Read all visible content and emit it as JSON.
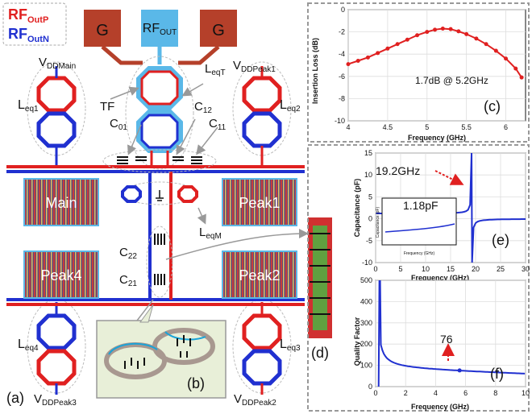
{
  "legend": {
    "rf_p": "RF",
    "rf_p_sub": "OutP",
    "rf_n": "RF",
    "rf_n_sub": "OutN"
  },
  "pads": {
    "g_left": "G",
    "rf_out": "RF",
    "rf_out_sub": "OUT",
    "g_right": "G"
  },
  "labels": {
    "vdd_main": "V",
    "vdd_main_sub": "DDMain",
    "vdd_peak1": "V",
    "vdd_peak1_sub": "DDPeak1",
    "vdd_peak3": "V",
    "vdd_peak3_sub": "DDPeak3",
    "vdd_peak2": "V",
    "vdd_peak2_sub": "DDPeak2",
    "leqt": "L",
    "leqt_sub": "eqT",
    "tf": "TF",
    "c12": "C",
    "c12_sub": "12",
    "c01": "C",
    "c01_sub": "01",
    "c11": "C",
    "c11_sub": "11",
    "leq1": "L",
    "leq1_sub": "eq1",
    "leq2": "L",
    "leq2_sub": "eq2",
    "leq3": "L",
    "leq3_sub": "eq3",
    "leq4": "L",
    "leq4_sub": "eq4",
    "leqm": "L",
    "leqm_sub": "eqM",
    "c22": "C",
    "c22_sub": "22",
    "c21": "C",
    "c21_sub": "21",
    "main": "Main",
    "peak1": "Peak1",
    "peak4": "Peak4",
    "peak2": "Peak2",
    "tag_a": "(a)",
    "tag_b": "(b)",
    "tag_d": "(d)"
  },
  "chart_data": [
    {
      "type": "line",
      "panel": "(c)",
      "xlabel": "Frequency (GHz)",
      "ylabel": "Insertion Loss (dB)",
      "xlim": [
        4,
        6.25
      ],
      "ylim": [
        -10,
        0
      ],
      "xticks": [
        "4",
        "4.5",
        "5",
        "5.5",
        "6"
      ],
      "yticks": [
        "0",
        "-2",
        "-4",
        "-6",
        "-8",
        "-10"
      ],
      "grid": true,
      "x": [
        4.0,
        4.125,
        4.25,
        4.375,
        4.5,
        4.625,
        4.75,
        4.875,
        5.0,
        5.1,
        5.2,
        5.3,
        5.4,
        5.5,
        5.625,
        5.75,
        5.875,
        6.0,
        6.125,
        6.2
      ],
      "y": [
        -4.9,
        -4.6,
        -4.3,
        -3.9,
        -3.5,
        -3.1,
        -2.7,
        -2.3,
        -2.0,
        -1.8,
        -1.7,
        -1.75,
        -1.95,
        -2.2,
        -2.6,
        -3.1,
        -3.7,
        -4.4,
        -5.3,
        -6.1
      ],
      "annotation": "1.7dB @ 5.2GHz"
    },
    {
      "type": "line",
      "panel": "(e)",
      "xlabel": "Frequency (GHz)",
      "ylabel": "Capacitance (pF)",
      "xlim": [
        0,
        30
      ],
      "ylim": [
        -10,
        15
      ],
      "xticks": [
        "0",
        "5",
        "10",
        "15",
        "20",
        "25",
        "30"
      ],
      "yticks": [
        "15",
        "10",
        "5",
        "0",
        "-5",
        "-10"
      ],
      "grid": true,
      "annotation": "19.2GHz",
      "inset": {
        "xlabel": "Frequency (GHz)",
        "ylabel": "Capacitance (pF)",
        "annotation": "1.18pF",
        "xticks": [
          "0",
          "2",
          "4",
          "6",
          "8",
          "10"
        ],
        "yticks": [
          "8",
          "6",
          "4",
          "2",
          "0"
        ]
      }
    },
    {
      "type": "line",
      "panel": "(f)",
      "xlabel": "Frequency (GHz)",
      "ylabel": "Quality Factor",
      "xlim": [
        0,
        10
      ],
      "ylim": [
        0,
        500
      ],
      "xticks": [
        "0",
        "2",
        "4",
        "6",
        "8",
        "10"
      ],
      "yticks": [
        "500",
        "400",
        "300",
        "200",
        "100",
        "0"
      ],
      "grid": true,
      "annotation": "76"
    }
  ]
}
